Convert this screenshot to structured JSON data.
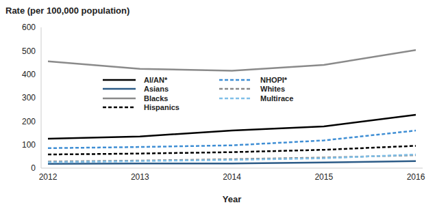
{
  "chart_data": {
    "type": "line",
    "y_label": "Rate (per 100,000 population)",
    "x_label": "Year",
    "x": [
      2012,
      2013,
      2014,
      2015,
      2016
    ],
    "xlim": [
      2012,
      2016
    ],
    "xticks": [
      2012,
      2013,
      2014,
      2015,
      2016
    ],
    "ylim": [
      0,
      600
    ],
    "yticks": [
      0,
      100,
      200,
      300,
      400,
      500,
      600
    ],
    "grid": false,
    "legend": "center",
    "series": [
      {
        "name": "AI/AN*",
        "color": "#000000",
        "line_style": "solid",
        "values": [
          125,
          135,
          160,
          178,
          227
        ]
      },
      {
        "name": "Asians",
        "color": "#2c5b87",
        "line_style": "solid",
        "values": [
          18,
          20,
          20,
          24,
          30
        ]
      },
      {
        "name": "Blacks",
        "color": "#8a8a8a",
        "line_style": "solid",
        "values": [
          455,
          423,
          415,
          440,
          503
        ]
      },
      {
        "name": "Hispanics",
        "color": "#000000",
        "line_style": "dashed",
        "values": [
          58,
          62,
          68,
          78,
          95
        ]
      },
      {
        "name": "NHOPI*",
        "color": "#3f8ed4",
        "line_style": "dashed",
        "values": [
          85,
          90,
          97,
          118,
          160
        ]
      },
      {
        "name": "Whites",
        "color": "#888888",
        "line_style": "dashed",
        "values": [
          28,
          32,
          38,
          45,
          55
        ]
      },
      {
        "name": "Multirace",
        "color": "#7fbfe8",
        "line_style": "dashed",
        "values": [
          25,
          30,
          35,
          42,
          58
        ]
      }
    ]
  }
}
